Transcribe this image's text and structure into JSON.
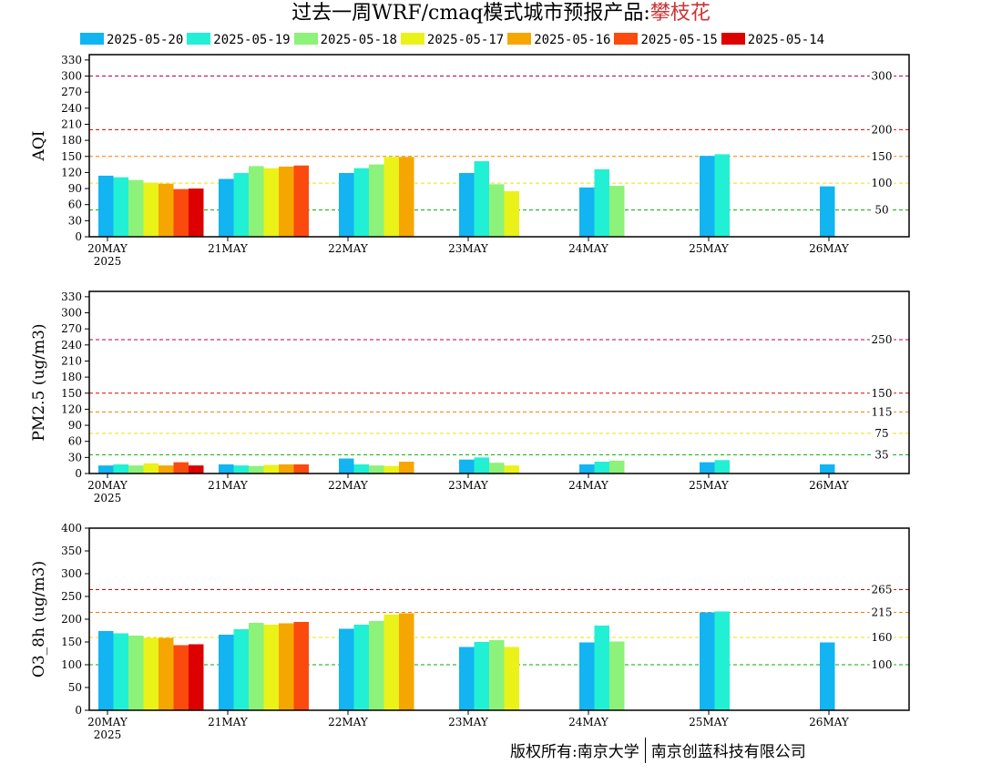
{
  "title": {
    "prefix": "过去一周WRF/cmaq模式城市预报产品:",
    "city": "攀枝花"
  },
  "colors": {
    "2025-05-20": "#12b4f2",
    "2025-05-19": "#22f0d4",
    "2025-05-18": "#8cf27a",
    "2025-05-17": "#eaf218",
    "2025-05-16": "#f6a600",
    "2025-05-15": "#fb4a0e",
    "2025-05-14": "#dc0000"
  },
  "legend": [
    "2025-05-20",
    "2025-05-19",
    "2025-05-18",
    "2025-05-17",
    "2025-05-16",
    "2025-05-15",
    "2025-05-14"
  ],
  "footer": {
    "left": "版权所有:南京大学",
    "right": "南京创蓝科技有限公司"
  },
  "chart_data": [
    {
      "type": "bar",
      "ylabel": "AQI",
      "ylim": [
        0,
        340
      ],
      "yticks": [
        0,
        30,
        60,
        90,
        120,
        150,
        180,
        210,
        240,
        270,
        300,
        330
      ],
      "categories": [
        "20MAY",
        "21MAY",
        "22MAY",
        "23MAY",
        "24MAY",
        "25MAY",
        "26MAY"
      ],
      "year_label": "2025",
      "thresholds": [
        {
          "value": 300,
          "label": "300",
          "color": "#b0005a"
        },
        {
          "value": 200,
          "label": "200",
          "color": "#e00000"
        },
        {
          "value": 150,
          "label": "150",
          "color": "#f08000"
        },
        {
          "value": 100,
          "label": "100",
          "color": "#f0e000"
        },
        {
          "value": 50,
          "label": "50",
          "color": "#00b000"
        }
      ],
      "series": [
        {
          "name": "2025-05-20",
          "values": [
            114,
            108,
            119,
            119,
            92,
            151,
            94
          ]
        },
        {
          "name": "2025-05-19",
          "values": [
            111,
            119,
            128,
            141,
            126,
            154,
            null
          ]
        },
        {
          "name": "2025-05-18",
          "values": [
            106,
            132,
            135,
            98,
            95,
            null,
            null
          ]
        },
        {
          "name": "2025-05-17",
          "values": [
            101,
            128,
            149,
            85,
            null,
            null,
            null
          ]
        },
        {
          "name": "2025-05-16",
          "values": [
            99,
            131,
            149,
            null,
            null,
            null,
            null
          ]
        },
        {
          "name": "2025-05-15",
          "values": [
            89,
            133,
            null,
            null,
            null,
            null,
            null
          ]
        },
        {
          "name": "2025-05-14",
          "values": [
            90,
            null,
            null,
            null,
            null,
            null,
            null
          ]
        }
      ]
    },
    {
      "type": "bar",
      "ylabel": "PM2.5 (ug/m3)",
      "ylim": [
        0,
        340
      ],
      "yticks": [
        0,
        30,
        60,
        90,
        120,
        150,
        180,
        210,
        240,
        270,
        300,
        330
      ],
      "categories": [
        "20MAY",
        "21MAY",
        "22MAY",
        "23MAY",
        "24MAY",
        "25MAY",
        "26MAY"
      ],
      "year_label": "2025",
      "thresholds": [
        {
          "value": 250,
          "label": "250",
          "color": "#b0005a"
        },
        {
          "value": 150,
          "label": "150",
          "color": "#e00000"
        },
        {
          "value": 115,
          "label": "115",
          "color": "#f08000"
        },
        {
          "value": 75,
          "label": "75",
          "color": "#f0e000"
        },
        {
          "value": 35,
          "label": "35",
          "color": "#00b000"
        }
      ],
      "series": [
        {
          "name": "2025-05-20",
          "values": [
            15,
            17,
            28,
            26,
            17,
            21,
            17
          ]
        },
        {
          "name": "2025-05-19",
          "values": [
            17,
            15,
            17,
            30,
            22,
            25,
            null
          ]
        },
        {
          "name": "2025-05-18",
          "values": [
            15,
            14,
            15,
            20,
            24,
            null,
            null
          ]
        },
        {
          "name": "2025-05-17",
          "values": [
            19,
            16,
            14,
            15,
            null,
            null,
            null
          ]
        },
        {
          "name": "2025-05-16",
          "values": [
            15,
            17,
            22,
            null,
            null,
            null,
            null
          ]
        },
        {
          "name": "2025-05-15",
          "values": [
            21,
            17,
            null,
            null,
            null,
            null,
            null
          ]
        },
        {
          "name": "2025-05-14",
          "values": [
            15,
            null,
            null,
            null,
            null,
            null,
            null
          ]
        }
      ]
    },
    {
      "type": "bar",
      "ylabel": "O3_8h (ug/m3)",
      "ylim": [
        0,
        400
      ],
      "yticks": [
        0,
        50,
        100,
        150,
        200,
        250,
        300,
        350,
        400
      ],
      "categories": [
        "20MAY",
        "21MAY",
        "22MAY",
        "23MAY",
        "24MAY",
        "25MAY",
        "26MAY"
      ],
      "year_label": "2025",
      "thresholds": [
        {
          "value": 265,
          "label": "265",
          "color": "#e00000"
        },
        {
          "value": 215,
          "label": "215",
          "color": "#f08000"
        },
        {
          "value": 160,
          "label": "160",
          "color": "#f0e000"
        },
        {
          "value": 100,
          "label": "100",
          "color": "#00b000"
        }
      ],
      "series": [
        {
          "name": "2025-05-20",
          "values": [
            174,
            166,
            179,
            139,
            149,
            215,
            149
          ]
        },
        {
          "name": "2025-05-19",
          "values": [
            169,
            178,
            188,
            150,
            186,
            217,
            null
          ]
        },
        {
          "name": "2025-05-18",
          "values": [
            164,
            192,
            196,
            154,
            151,
            null,
            null
          ]
        },
        {
          "name": "2025-05-17",
          "values": [
            159,
            188,
            210,
            139,
            null,
            null,
            null
          ]
        },
        {
          "name": "2025-05-16",
          "values": [
            159,
            191,
            213,
            null,
            null,
            null,
            null
          ]
        },
        {
          "name": "2025-05-15",
          "values": [
            143,
            194,
            null,
            null,
            null,
            null,
            null
          ]
        },
        {
          "name": "2025-05-14",
          "values": [
            145,
            null,
            null,
            null,
            null,
            null,
            null
          ]
        }
      ]
    }
  ]
}
